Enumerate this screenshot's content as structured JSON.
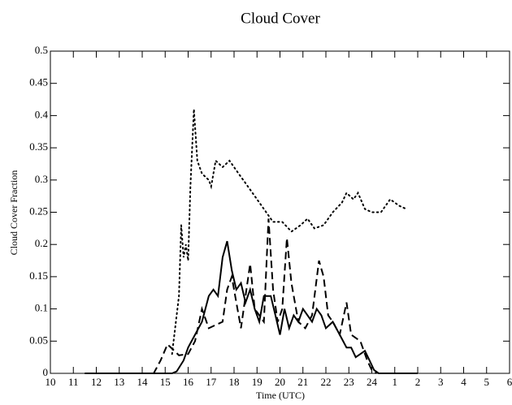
{
  "chart_data": {
    "type": "line",
    "title": "Cloud Cover",
    "xlabel": "Time (UTC)",
    "ylabel": "Cloud Cover Fraction",
    "xlim": [
      10,
      30
    ],
    "ylim": [
      0,
      0.5
    ],
    "xticks": [
      10,
      11,
      12,
      13,
      14,
      15,
      16,
      17,
      18,
      19,
      20,
      21,
      22,
      23,
      24,
      {
        "value": 25,
        "label": "1"
      },
      {
        "value": 26,
        "label": "2"
      },
      {
        "value": 27,
        "label": "3"
      },
      {
        "value": 28,
        "label": "4"
      },
      {
        "value": 29,
        "label": "5"
      },
      {
        "value": 30,
        "label": "6"
      }
    ],
    "yticks": [
      0,
      0.05,
      0.1,
      0.15,
      0.2,
      0.25,
      0.3,
      0.35,
      0.4,
      0.45,
      0.5
    ],
    "grid": false,
    "series": [
      {
        "color": "#000000",
        "dash": "solid",
        "x": [
          11.5,
          15.3,
          15.5,
          15.8,
          16.0,
          16.3,
          16.6,
          16.9,
          17.1,
          17.3,
          17.5,
          17.7,
          17.9,
          18.1,
          18.3,
          18.5,
          18.7,
          18.9,
          19.1,
          19.3,
          19.6,
          19.8,
          20.0,
          20.2,
          20.4,
          20.6,
          20.8,
          21.0,
          21.2,
          21.4,
          21.6,
          21.8,
          22.0,
          22.3,
          22.6,
          22.9,
          23.1,
          23.3,
          23.5,
          23.7,
          23.9,
          24.1,
          24.3,
          26.0
        ],
        "values": [
          0,
          0,
          0.003,
          0.02,
          0.04,
          0.06,
          0.08,
          0.12,
          0.13,
          0.12,
          0.18,
          0.205,
          0.16,
          0.13,
          0.14,
          0.11,
          0.13,
          0.1,
          0.08,
          0.12,
          0.12,
          0.09,
          0.06,
          0.1,
          0.07,
          0.09,
          0.08,
          0.1,
          0.09,
          0.08,
          0.1,
          0.09,
          0.07,
          0.08,
          0.06,
          0.04,
          0.04,
          0.025,
          0.03,
          0.035,
          0.02,
          0.005,
          0,
          0
        ]
      },
      {
        "color": "#000000",
        "dash": "dashed",
        "x": [
          11.5,
          14.5,
          14.8,
          15.1,
          15.4,
          15.6,
          16.0,
          16.3,
          16.6,
          16.9,
          17.2,
          17.5,
          17.7,
          17.9,
          18.1,
          18.3,
          18.5,
          18.7,
          18.9,
          19.1,
          19.3,
          19.5,
          19.7,
          19.9,
          20.1,
          20.3,
          20.5,
          20.8,
          21.1,
          21.4,
          21.7,
          21.9,
          22.1,
          22.3,
          22.6,
          22.9,
          23.1,
          23.5,
          23.8,
          24.0,
          24.2
        ],
        "values": [
          0,
          0,
          0.02,
          0.045,
          0.035,
          0.028,
          0.03,
          0.05,
          0.1,
          0.07,
          0.075,
          0.08,
          0.13,
          0.15,
          0.11,
          0.07,
          0.12,
          0.17,
          0.1,
          0.09,
          0.08,
          0.24,
          0.13,
          0.08,
          0.1,
          0.21,
          0.14,
          0.08,
          0.07,
          0.09,
          0.175,
          0.15,
          0.09,
          0.08,
          0.06,
          0.11,
          0.06,
          0.05,
          0.02,
          0.005,
          0
        ]
      },
      {
        "color": "#000000",
        "dash": "dotted",
        "x": [
          15.3,
          15.6,
          15.7,
          15.8,
          15.9,
          16.0,
          16.1,
          16.25,
          16.4,
          16.6,
          16.9,
          17.0,
          17.2,
          17.5,
          17.8,
          18.2,
          18.6,
          19.0,
          19.4,
          19.7,
          20.1,
          20.5,
          20.9,
          21.2,
          21.5,
          21.9,
          22.3,
          22.7,
          22.9,
          23.2,
          23.4,
          23.7,
          24.0,
          24.4,
          24.8,
          25.2,
          25.5
        ],
        "values": [
          0.03,
          0.12,
          0.23,
          0.18,
          0.2,
          0.175,
          0.29,
          0.41,
          0.33,
          0.31,
          0.3,
          0.29,
          0.33,
          0.32,
          0.33,
          0.31,
          0.29,
          0.27,
          0.25,
          0.235,
          0.235,
          0.22,
          0.23,
          0.24,
          0.225,
          0.23,
          0.25,
          0.265,
          0.28,
          0.27,
          0.28,
          0.255,
          0.25,
          0.25,
          0.27,
          0.26,
          0.255
        ]
      }
    ]
  }
}
